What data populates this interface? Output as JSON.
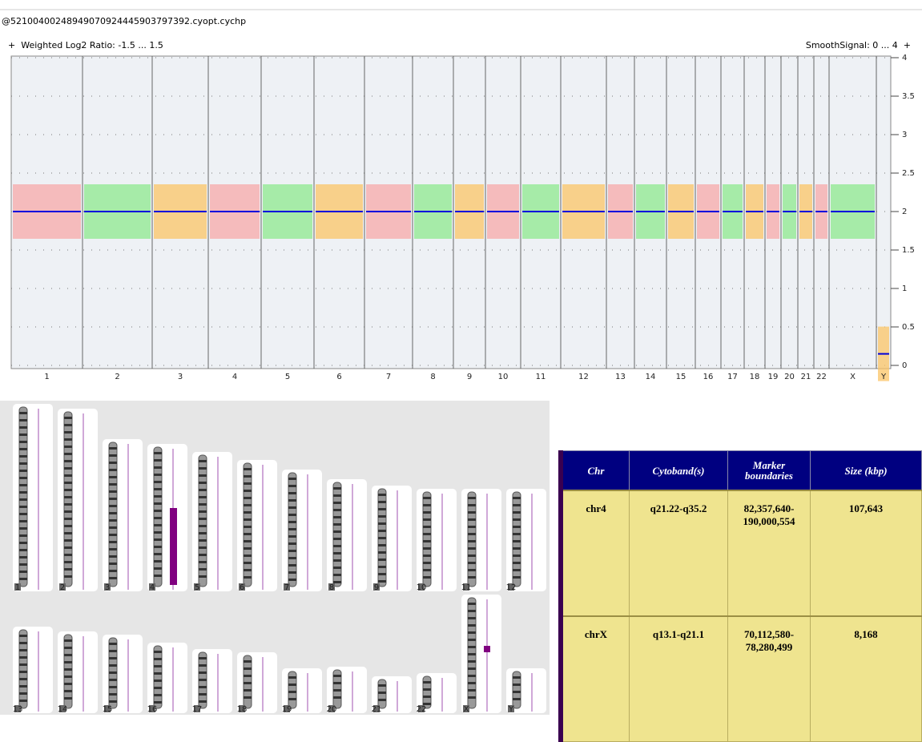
{
  "window_title": "@52100400248949070924445903797392.cyopt.cychp",
  "left_track_label": "Weighted Log2 Ratio: -1.5 ... 1.5",
  "right_track_label": "SmoothSignal: 0 ... 4",
  "chart_data": {
    "type": "segments",
    "categories": [
      "1",
      "2",
      "3",
      "4",
      "5",
      "6",
      "7",
      "8",
      "9",
      "10",
      "11",
      "12",
      "13",
      "14",
      "15",
      "16",
      "17",
      "18",
      "19",
      "20",
      "21",
      "22",
      "X",
      "Y"
    ],
    "values": [
      2,
      2,
      2,
      2,
      2,
      2,
      2,
      2,
      2,
      2,
      2,
      2,
      2,
      2,
      2,
      2,
      2,
      2,
      2,
      2,
      2,
      2,
      2,
      0.15
    ],
    "colors": [
      "#f7a8a8",
      "#8ee88e",
      "#fbc466",
      "#f7a8a8",
      "#8ee88e",
      "#fbc466",
      "#f7a8a8",
      "#8ee88e",
      "#fbc466",
      "#f7a8a8",
      "#8ee88e",
      "#fbc466",
      "#f7a8a8",
      "#8ee88e",
      "#fbc466",
      "#f7a8a8",
      "#8ee88e",
      "#fbc466",
      "#f7a8a8",
      "#8ee88e",
      "#fbc466",
      "#f7a8a8",
      "#8ee88e",
      "#fbc466"
    ],
    "line_color": "#0000dd",
    "ylim": [
      0,
      4
    ],
    "yticks": [
      0,
      0.5,
      1,
      1.5,
      2,
      2.5,
      3,
      3.5,
      4
    ],
    "grid": true
  },
  "table": {
    "columns": [
      "Chr",
      "Cytoband(s)",
      "Marker boundaries",
      "Size (kbp)"
    ],
    "rows": [
      [
        "chr4",
        "q21.22-q35.2",
        "82,357,640-190,000,554",
        "107,643"
      ],
      [
        "chrX",
        "q13.1-q21.1",
        "70,112,580-78,280,499",
        "8,168"
      ]
    ]
  }
}
